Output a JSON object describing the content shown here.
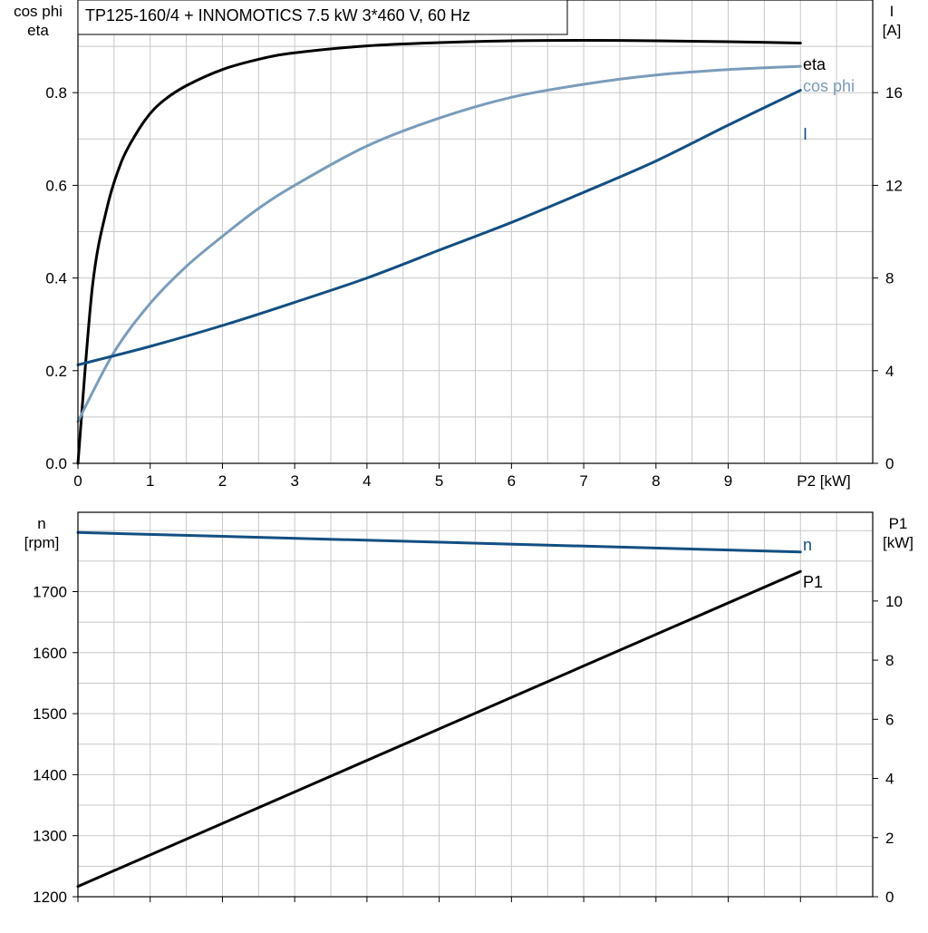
{
  "title": "TP125-160/4 + INNOMOTICS   7.5 kW   3*460 V, 60 Hz",
  "colors": {
    "eta": "#000000",
    "cos_phi": "#7a9cba",
    "current": "#124f82",
    "speed": "#124f82",
    "p1": "#000000",
    "grid": "#c8c8c8",
    "frame": "#000000"
  },
  "chart_data": [
    {
      "type": "line",
      "title": "TP125-160/4 + INNOMOTICS   7.5 kW   3*460 V, 60 Hz",
      "xlabel": "P2 [kW]",
      "xlim": [
        0,
        11
      ],
      "xticks": [
        0,
        1,
        2,
        3,
        4,
        5,
        6,
        7,
        8,
        9
      ],
      "x_unit_tick_label": "P2 [kW]",
      "grid": true,
      "y_left": {
        "label_lines": [
          "cos phi",
          "eta"
        ],
        "lim": [
          0,
          1.0
        ],
        "ticks": [
          0.0,
          0.2,
          0.4,
          0.6,
          0.8
        ],
        "tick_labels": [
          "0.0",
          "0.2",
          "0.4",
          "0.6",
          "0.8"
        ]
      },
      "y_right": {
        "label_lines": [
          "I",
          "[A]"
        ],
        "lim": [
          0,
          20
        ],
        "ticks": [
          0,
          4,
          8,
          12,
          16
        ],
        "tick_labels": [
          "0",
          "4",
          "8",
          "12",
          "16"
        ]
      },
      "series": [
        {
          "name": "eta",
          "axis": "left",
          "color": "#000000",
          "x": [
            0,
            0.2,
            0.4,
            0.6,
            0.8,
            1.0,
            1.2,
            1.5,
            2.0,
            2.5,
            3.0,
            4.0,
            5.0,
            6.0,
            7.0,
            8.0,
            9.0,
            10.0
          ],
          "y": [
            0.0,
            0.38,
            0.55,
            0.65,
            0.71,
            0.755,
            0.785,
            0.815,
            0.85,
            0.872,
            0.886,
            0.901,
            0.908,
            0.912,
            0.913,
            0.912,
            0.91,
            0.907
          ]
        },
        {
          "name": "cos phi",
          "axis": "left",
          "color": "#7a9cba",
          "x": [
            0,
            0.5,
            1.0,
            1.5,
            2.0,
            2.5,
            3.0,
            4.0,
            5.0,
            6.0,
            7.0,
            8.0,
            9.0,
            10.0
          ],
          "y": [
            0.09,
            0.24,
            0.345,
            0.425,
            0.49,
            0.55,
            0.6,
            0.685,
            0.745,
            0.79,
            0.818,
            0.838,
            0.85,
            0.857
          ]
        },
        {
          "name": "I",
          "axis": "right",
          "color": "#124f82",
          "x": [
            0,
            1,
            2,
            3,
            4,
            5,
            6,
            7,
            8,
            9,
            10
          ],
          "y": [
            4.25,
            5.05,
            5.95,
            6.95,
            8.0,
            9.2,
            10.4,
            11.7,
            13.05,
            14.6,
            16.1
          ]
        }
      ]
    },
    {
      "type": "line",
      "xlim": [
        0,
        11
      ],
      "xticks": [
        0,
        1,
        2,
        3,
        4,
        5,
        6,
        7,
        8,
        9,
        10
      ],
      "grid": true,
      "y_left": {
        "label_lines": [
          "n",
          "[rpm]"
        ],
        "lim": [
          1200,
          1830
        ],
        "ticks": [
          1200,
          1300,
          1400,
          1500,
          1600,
          1700
        ],
        "tick_labels": [
          "1200",
          "1300",
          "1400",
          "1500",
          "1600",
          "1700"
        ]
      },
      "y_right": {
        "label_lines": [
          "P1",
          "[kW]"
        ],
        "lim": [
          0,
          13
        ],
        "ticks": [
          0,
          2,
          4,
          6,
          8,
          10
        ],
        "tick_labels": [
          "0",
          "2",
          "4",
          "6",
          "8",
          "10"
        ]
      },
      "series": [
        {
          "name": "n",
          "axis": "left",
          "color": "#124f82",
          "x": [
            0,
            10
          ],
          "y": [
            1797,
            1765
          ]
        },
        {
          "name": "P1",
          "axis": "right",
          "color": "#000000",
          "x": [
            0,
            10
          ],
          "y": [
            0.35,
            11.0
          ]
        }
      ]
    }
  ]
}
